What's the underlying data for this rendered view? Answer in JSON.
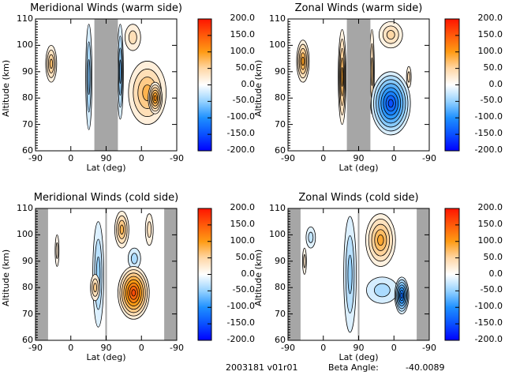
{
  "footer": {
    "date_version": "2003181 v01r01",
    "beta_label": "Beta Angle:",
    "beta_value": "-40.0089"
  },
  "colorbar": {
    "ticks": [
      "200.0",
      "150.0",
      "100.0",
      "50.0",
      "0.0",
      "-50.0",
      "-100.0",
      "-150.0",
      "-200.0"
    ],
    "range": [
      -200,
      200
    ],
    "colors": {
      "max": "#ff1a00",
      "orange": "#ff9a00",
      "light_orange": "#ffd9a8",
      "white": "#ffffff",
      "light_blue": "#a8d8ff",
      "mid_blue": "#1e90ff",
      "min": "#0000ff"
    }
  },
  "mask_color": "#a6a6a6",
  "chart_data": [
    {
      "type": "heatmap",
      "title": "Meridional Winds (warm side)",
      "xlabel": "Lat (deg)",
      "ylabel": "Altitude (km)",
      "xticks": [
        "-90",
        "0",
        "90",
        "0",
        "-90"
      ],
      "yticks": [
        "60",
        "70",
        "80",
        "90",
        "100",
        "110"
      ],
      "ylim": [
        60,
        110
      ],
      "x_path_range": [
        0,
        360
      ],
      "masked_x_path": [
        [
          150,
          210
        ]
      ],
      "features": [
        {
          "x": 40,
          "y": 93,
          "rx": 14,
          "ry": 7,
          "value": 70
        },
        {
          "x": 136,
          "y": 88,
          "rx": 8,
          "ry": 20,
          "value": -60
        },
        {
          "x": 216,
          "y": 90,
          "rx": 8,
          "ry": 18,
          "value": -70
        },
        {
          "x": 248,
          "y": 103,
          "rx": 20,
          "ry": 5,
          "value": 40
        },
        {
          "x": 285,
          "y": 82,
          "rx": 48,
          "ry": 12,
          "value": 80
        },
        {
          "x": 305,
          "y": 80,
          "rx": 18,
          "ry": 6,
          "value": 110
        }
      ]
    },
    {
      "type": "heatmap",
      "title": "Zonal Winds (warm side)",
      "xlabel": "Lat (deg)",
      "ylabel": "Altitude (km)",
      "xticks": [
        "-90",
        "0",
        "90",
        "0",
        "-90"
      ],
      "yticks": [
        "60",
        "70",
        "80",
        "90",
        "100",
        "110"
      ],
      "ylim": [
        60,
        110
      ],
      "x_path_range": [
        0,
        360
      ],
      "masked_x_path": [
        [
          150,
          210
        ]
      ],
      "features": [
        {
          "x": 38,
          "y": 94,
          "rx": 16,
          "ry": 8,
          "value": 95
        },
        {
          "x": 138,
          "y": 88,
          "rx": 10,
          "ry": 18,
          "value": 90
        },
        {
          "x": 214,
          "y": 90,
          "rx": 6,
          "ry": 16,
          "value": 60
        },
        {
          "x": 262,
          "y": 104,
          "rx": 30,
          "ry": 5,
          "value": 50
        },
        {
          "x": 308,
          "y": 88,
          "rx": 6,
          "ry": 4,
          "value": 40
        },
        {
          "x": 262,
          "y": 78,
          "rx": 50,
          "ry": 12,
          "value": -150
        }
      ]
    },
    {
      "type": "heatmap",
      "title": "Meridional Winds (cold side)",
      "xlabel": "Lat (deg)",
      "ylabel": "Altitude (km)",
      "xticks": [
        "-90",
        "0",
        "90",
        "0",
        "-90"
      ],
      "yticks": [
        "60",
        "70",
        "80",
        "90",
        "100",
        "110"
      ],
      "ylim": [
        60,
        110
      ],
      "x_path_range": [
        0,
        360
      ],
      "masked_x_path": [
        [
          0,
          32
        ],
        [
          178,
          182
        ],
        [
          328,
          360
        ]
      ],
      "features": [
        {
          "x": 55,
          "y": 94,
          "rx": 5,
          "ry": 6,
          "value": 25
        },
        {
          "x": 160,
          "y": 85,
          "rx": 14,
          "ry": 20,
          "value": -50
        },
        {
          "x": 152,
          "y": 80,
          "rx": 12,
          "ry": 5,
          "value": 60
        },
        {
          "x": 220,
          "y": 102,
          "rx": 18,
          "ry": 7,
          "value": 80
        },
        {
          "x": 290,
          "y": 102,
          "rx": 10,
          "ry": 6,
          "value": 35
        },
        {
          "x": 252,
          "y": 91,
          "rx": 16,
          "ry": 4,
          "value": -40
        },
        {
          "x": 250,
          "y": 78,
          "rx": 40,
          "ry": 10,
          "value": 160
        }
      ]
    },
    {
      "type": "heatmap",
      "title": "Zonal Winds (cold side)",
      "xlabel": "Lat (deg)",
      "ylabel": "Altitude (km)",
      "xticks": [
        "-90",
        "0",
        "90",
        "0",
        "-90"
      ],
      "yticks": [
        "60",
        "70",
        "80",
        "90",
        "100",
        "110"
      ],
      "ylim": [
        60,
        110
      ],
      "x_path_range": [
        0,
        360
      ],
      "masked_x_path": [
        [
          0,
          32
        ],
        [
          178,
          182
        ],
        [
          328,
          360
        ]
      ],
      "features": [
        {
          "x": 42,
          "y": 90,
          "rx": 5,
          "ry": 5,
          "value": 30
        },
        {
          "x": 58,
          "y": 99,
          "rx": 12,
          "ry": 4,
          "value": -30
        },
        {
          "x": 158,
          "y": 85,
          "rx": 16,
          "ry": 22,
          "value": -50
        },
        {
          "x": 236,
          "y": 98,
          "rx": 38,
          "ry": 10,
          "value": 90
        },
        {
          "x": 240,
          "y": 79,
          "rx": 40,
          "ry": 5,
          "value": -40
        },
        {
          "x": 290,
          "y": 77,
          "rx": 18,
          "ry": 7,
          "value": -130
        }
      ]
    }
  ]
}
